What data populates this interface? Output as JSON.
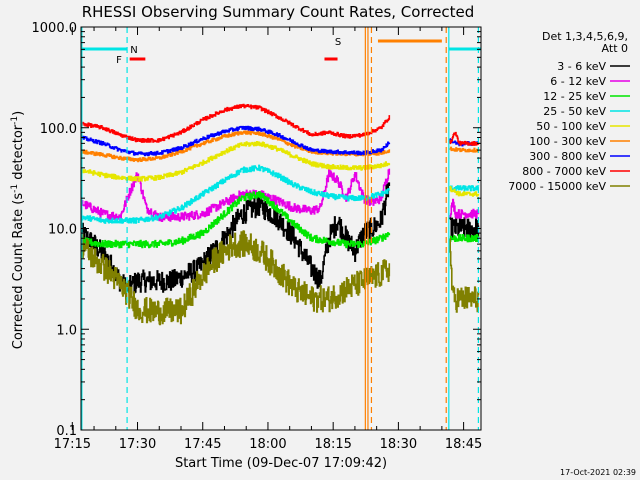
{
  "chart_data": {
    "type": "line",
    "title": "RHESSI Observing Summary Count Rates, Corrected",
    "xlabel": "Start Time (09-Dec-07 17:09:42)",
    "ylabel_main": "Corrected Count Rate (s",
    "ylabel_exp1": "-1",
    "ylabel_mid": " detector",
    "ylabel_exp2": "-1",
    "ylabel_end": ")",
    "timestamp": "17-Oct-2021 02:39",
    "y_scale": "log",
    "ylim": [
      0.1,
      1000
    ],
    "xlim_minutes": [
      17.0,
      109.0
    ],
    "x_ticks": [
      {
        "label": "17:15",
        "minute": 15
      },
      {
        "label": "17:30",
        "minute": 30
      },
      {
        "label": "17:45",
        "minute": 45
      },
      {
        "label": "18:00",
        "minute": 60
      },
      {
        "label": "18:15",
        "minute": 75
      },
      {
        "label": "18:30",
        "minute": 90
      },
      {
        "label": "18:45",
        "minute": 105
      }
    ],
    "y_ticks": [
      {
        "label": "1000.0",
        "value": 1000
      },
      {
        "label": "100.0",
        "value": 100
      },
      {
        "label": "10.0",
        "value": 10
      },
      {
        "label": "1.0",
        "value": 1
      },
      {
        "label": "0.1",
        "value": 0.1
      }
    ],
    "legend_header": [
      "Det 1,3,4,5,6,9,",
      "Att 0"
    ],
    "legend_position": "right",
    "flags": [
      {
        "label": "N",
        "color": "#00e5e5",
        "segments": [
          [
            17.0,
            27.6
          ],
          [
            101.6,
            109.0
          ]
        ]
      },
      {
        "label": "F",
        "color": "#ff0000",
        "segments": [
          [
            28.2,
            31.8
          ],
          [
            73.0,
            76.0
          ]
        ]
      },
      {
        "label": "S",
        "color": "#ff8000",
        "segments": [
          [
            85.3,
            100.0
          ]
        ]
      }
    ],
    "vlines": [
      {
        "minute": 17.2,
        "color": "#00e5e5",
        "style": "solid"
      },
      {
        "minute": 27.6,
        "color": "#00e5e5",
        "style": "dash"
      },
      {
        "minute": 82.4,
        "color": "#ff8000",
        "style": "solid"
      },
      {
        "minute": 83.0,
        "color": "#ff8000",
        "style": "solid"
      },
      {
        "minute": 83.8,
        "color": "#ff8000",
        "style": "dash"
      },
      {
        "minute": 101.0,
        "color": "#ff8000",
        "style": "dash"
      },
      {
        "minute": 101.6,
        "color": "#00e5e5",
        "style": "solid"
      },
      {
        "minute": 108.4,
        "color": "#00e5e5",
        "style": "dash"
      }
    ],
    "series": [
      {
        "name": "3 - 6 keV",
        "color": "#000000",
        "noise": 0.25,
        "segments": [
          {
            "x": [
              17,
              20,
              23,
              26,
              27.5,
              30,
              34,
              38,
              44,
              50,
              54,
              58,
              62,
              66,
              70,
              72,
              74,
              76,
              78,
              80,
              82,
              84,
              86,
              88
            ],
            "y": [
              9,
              7,
              5,
              3,
              2.5,
              3,
              3,
              3,
              4,
              8,
              14,
              17,
              13,
              8,
              4,
              3,
              8,
              12,
              8,
              6,
              9,
              10,
              12,
              30
            ]
          },
          {
            "x": [
              101.8,
              104,
              106,
              108.5
            ],
            "y": [
              10,
              10,
              10,
              10
            ]
          }
        ]
      },
      {
        "name": "6 - 12 keV",
        "color": "#e600e6",
        "noise": 0.1,
        "segments": [
          {
            "x": [
              17,
              22,
              26,
              28,
              30,
              32,
              35,
              40,
              45,
              50,
              54,
              58,
              62,
              66,
              70,
              72,
              74,
              76,
              78,
              80,
              82,
              84,
              86,
              88
            ],
            "y": [
              18,
              14,
              13,
              22,
              35,
              16,
              13,
              13,
              14,
              18,
              22,
              22,
              19,
              16,
              15,
              16,
              35,
              30,
              20,
              35,
              20,
              18,
              20,
              40
            ]
          },
          {
            "x": [
              101.8,
              102.5,
              103.2,
              104,
              106,
              108.5
            ],
            "y": [
              14,
              18,
              14,
              14,
              14,
              14
            ]
          }
        ]
      },
      {
        "name": "12 - 25 keV",
        "color": "#00e600",
        "noise": 0.08,
        "segments": [
          {
            "x": [
              17,
              22,
              26,
              30,
              35,
              40,
              45,
              50,
              54,
              58,
              62,
              66,
              70,
              74,
              78,
              82,
              86,
              88
            ],
            "y": [
              7.5,
              7,
              7,
              7,
              7,
              7.5,
              9,
              14,
              20,
              22,
              16,
              11,
              8,
              7.5,
              7,
              7,
              8,
              9
            ]
          },
          {
            "x": [
              101.8,
              104,
              106,
              108.5
            ],
            "y": [
              8,
              8,
              8,
              8
            ]
          }
        ]
      },
      {
        "name": "25 - 50 keV",
        "color": "#00e5e5",
        "noise": 0.06,
        "segments": [
          {
            "x": [
              17,
              22,
              26,
              30,
              35,
              40,
              45,
              50,
              54,
              58,
              62,
              66,
              70,
              74,
              78,
              82,
              86,
              88
            ],
            "y": [
              13,
              12,
              12,
              12,
              13,
              16,
              22,
              30,
              38,
              40,
              34,
              27,
              23,
              21,
              20,
              20,
              22,
              24
            ]
          },
          {
            "x": [
              101.8,
              104,
              106,
              108.5
            ],
            "y": [
              25,
              25,
              25,
              25
            ]
          }
        ]
      },
      {
        "name": "50 - 100 keV",
        "color": "#e6e600",
        "noise": 0.05,
        "segments": [
          {
            "x": [
              17,
              22,
              26,
              30,
              35,
              40,
              45,
              50,
              54,
              58,
              62,
              66,
              70,
              74,
              78,
              82,
              86,
              88
            ],
            "y": [
              38,
              34,
              32,
              31,
              32,
              36,
              45,
              58,
              68,
              70,
              62,
              52,
              44,
              41,
              40,
              40,
              42,
              45
            ]
          },
          {
            "x": [
              101.8,
              104,
              106,
              108.5
            ],
            "y": [
              25,
              22,
              22,
              22
            ]
          }
        ]
      },
      {
        "name": "100 - 300 keV",
        "color": "#ff8000",
        "noise": 0.04,
        "segments": [
          {
            "x": [
              17,
              22,
              26,
              30,
              35,
              40,
              45,
              50,
              54,
              58,
              62,
              66,
              70,
              74,
              78,
              82,
              86,
              88
            ],
            "y": [
              58,
              54,
              50,
              48,
              50,
              58,
              70,
              82,
              90,
              88,
              78,
              66,
              58,
              56,
              55,
              55,
              56,
              60
            ]
          },
          {
            "x": [
              101.8,
              104,
              106,
              108.5
            ],
            "y": [
              62,
              60,
              60,
              60
            ]
          }
        ]
      },
      {
        "name": "300 - 800 keV",
        "color": "#0000ff",
        "noise": 0.04,
        "segments": [
          {
            "x": [
              17,
              22,
              26,
              30,
              35,
              40,
              45,
              50,
              54,
              58,
              62,
              66,
              70,
              74,
              78,
              82,
              86,
              88
            ],
            "y": [
              80,
              70,
              60,
              55,
              56,
              63,
              78,
              92,
              100,
              97,
              86,
              72,
              60,
              58,
              57,
              56,
              60,
              72
            ]
          },
          {
            "x": [
              101.8,
              104,
              106,
              108.5
            ],
            "y": [
              75,
              68,
              70,
              70
            ]
          }
        ]
      },
      {
        "name": "800 - 7000 keV",
        "color": "#ff0000",
        "noise": 0.04,
        "segments": [
          {
            "x": [
              17,
              22,
              26,
              30,
              35,
              40,
              45,
              50,
              54,
              58,
              62,
              66,
              70,
              74,
              78,
              82,
              86,
              88
            ],
            "y": [
              110,
              100,
              85,
              75,
              75,
              90,
              120,
              150,
              165,
              158,
              130,
              105,
              85,
              90,
              82,
              85,
              100,
              130
            ]
          },
          {
            "x": [
              101.8,
              103,
              104,
              106,
              108.5
            ],
            "y": [
              70,
              90,
              70,
              70,
              70
            ]
          }
        ]
      },
      {
        "name": "7000 - 15000 keV",
        "color": "#808000",
        "noise": 0.3,
        "segments": [
          {
            "x": [
              17,
              20,
              24,
              27,
              30,
              33,
              36,
              40,
              44,
              48,
              52,
              55,
              58,
              62,
              66,
              70,
              74,
              78,
              82,
              86,
              88
            ],
            "y": [
              7,
              5,
              3.5,
              2.5,
              1.6,
              1.5,
              1.5,
              1.5,
              3,
              5,
              7,
              7,
              6,
              4,
              2.5,
              2,
              2,
              2.5,
              3,
              3.5,
              4
            ]
          },
          {
            "x": [
              101.8,
              102.5,
              104,
              106,
              108.5
            ],
            "y": [
              7,
              2,
              2,
              2,
              2
            ]
          }
        ]
      }
    ]
  }
}
